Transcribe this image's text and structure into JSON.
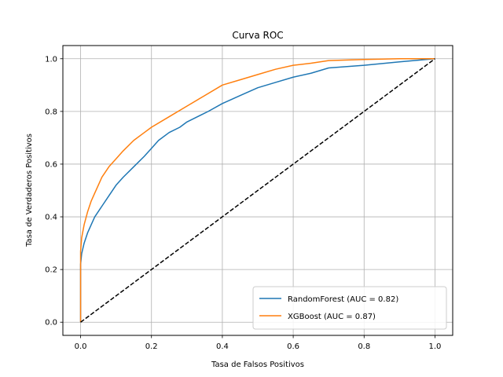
{
  "chart_data": {
    "type": "line",
    "title": "Curva ROC",
    "xlabel": "Tasa de Falsos Positivos",
    "ylabel": "Tasa de Verdaderos Positivos",
    "xlim": [
      -0.05,
      1.05
    ],
    "ylim": [
      -0.05,
      1.05
    ],
    "xticks": [
      "0.0",
      "0.2",
      "0.4",
      "0.6",
      "0.8",
      "1.0"
    ],
    "yticks": [
      "0.0",
      "0.2",
      "0.4",
      "0.6",
      "0.8",
      "1.0"
    ],
    "grid": true,
    "legend_position": "lower-right",
    "series": [
      {
        "name": "RandomForest (AUC = 0.82)",
        "color": "#1f77b4",
        "x": [
          0.0,
          0.0,
          0.003,
          0.01,
          0.02,
          0.03,
          0.04,
          0.06,
          0.08,
          0.1,
          0.12,
          0.15,
          0.18,
          0.2,
          0.22,
          0.25,
          0.28,
          0.3,
          0.33,
          0.36,
          0.4,
          0.45,
          0.5,
          0.55,
          0.6,
          0.65,
          0.7,
          0.8,
          0.9,
          1.0
        ],
        "y": [
          0.0,
          0.22,
          0.26,
          0.3,
          0.34,
          0.37,
          0.4,
          0.44,
          0.48,
          0.52,
          0.55,
          0.59,
          0.63,
          0.66,
          0.69,
          0.72,
          0.74,
          0.76,
          0.78,
          0.8,
          0.83,
          0.86,
          0.89,
          0.91,
          0.93,
          0.945,
          0.965,
          0.975,
          0.988,
          1.0
        ]
      },
      {
        "name": "XGBoost (AUC = 0.87)",
        "color": "#ff7f0e",
        "x": [
          0.0,
          0.0,
          0.003,
          0.01,
          0.02,
          0.03,
          0.04,
          0.05,
          0.06,
          0.08,
          0.1,
          0.12,
          0.15,
          0.18,
          0.2,
          0.25,
          0.3,
          0.35,
          0.4,
          0.45,
          0.5,
          0.55,
          0.6,
          0.65,
          0.7,
          0.8,
          0.9,
          1.0
        ],
        "y": [
          0.0,
          0.27,
          0.32,
          0.37,
          0.42,
          0.46,
          0.49,
          0.52,
          0.55,
          0.59,
          0.62,
          0.65,
          0.69,
          0.72,
          0.74,
          0.78,
          0.82,
          0.86,
          0.9,
          0.92,
          0.94,
          0.96,
          0.975,
          0.983,
          0.993,
          0.997,
          1.0,
          1.0
        ]
      },
      {
        "name": "",
        "color": "#000000",
        "dash": true,
        "x": [
          0.0,
          1.0
        ],
        "y": [
          0.0,
          1.0
        ]
      }
    ]
  }
}
